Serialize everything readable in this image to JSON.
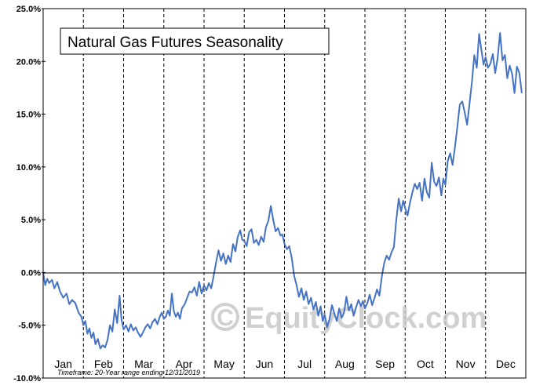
{
  "chart_data": {
    "type": "line",
    "title": "Natural Gas Futures Seasonality",
    "xlabel": "",
    "ylabel": "",
    "y_ticks": [
      "25.0%",
      "20.0%",
      "15.0%",
      "10.0%",
      "5.0%",
      "0.0%",
      "-5.0%",
      "-10.0%"
    ],
    "ylim": [
      -10,
      25
    ],
    "x_categories": [
      "Jan",
      "Feb",
      "Mar",
      "Apr",
      "May",
      "Jun",
      "Jul",
      "Aug",
      "Sep",
      "Oct",
      "Nov",
      "Dec"
    ],
    "grid": {
      "vertical_dashed": true,
      "horizontal": false
    },
    "footnote": "Timeframe: 20-Year range ending 12/31/2019",
    "watermark": "EquityClock.com",
    "line_color": "#4472c4",
    "series": [
      {
        "name": "",
        "points": [
          [
            0.0,
            0.0
          ],
          [
            0.05,
            -1.2
          ],
          [
            0.1,
            -0.6
          ],
          [
            0.15,
            -1.0
          ],
          [
            0.22,
            -0.7
          ],
          [
            0.28,
            -1.5
          ],
          [
            0.35,
            -0.9
          ],
          [
            0.42,
            -1.8
          ],
          [
            0.5,
            -2.4
          ],
          [
            0.58,
            -2.0
          ],
          [
            0.65,
            -3.0
          ],
          [
            0.72,
            -2.6
          ],
          [
            0.8,
            -2.9
          ],
          [
            0.88,
            -3.8
          ],
          [
            0.95,
            -4.2
          ],
          [
            1.0,
            -5.0
          ],
          [
            1.05,
            -4.6
          ],
          [
            1.1,
            -5.8
          ],
          [
            1.15,
            -5.3
          ],
          [
            1.2,
            -6.2
          ],
          [
            1.25,
            -5.7
          ],
          [
            1.3,
            -6.8
          ],
          [
            1.36,
            -6.3
          ],
          [
            1.42,
            -7.2
          ],
          [
            1.48,
            -6.9
          ],
          [
            1.54,
            -7.1
          ],
          [
            1.6,
            -6.4
          ],
          [
            1.66,
            -5.0
          ],
          [
            1.72,
            -5.6
          ],
          [
            1.78,
            -3.5
          ],
          [
            1.84,
            -4.8
          ],
          [
            1.9,
            -2.2
          ],
          [
            1.95,
            -4.5
          ],
          [
            2.0,
            -5.4
          ],
          [
            2.06,
            -5.0
          ],
          [
            2.12,
            -5.6
          ],
          [
            2.18,
            -4.9
          ],
          [
            2.24,
            -5.5
          ],
          [
            2.3,
            -5.2
          ],
          [
            2.36,
            -5.7
          ],
          [
            2.42,
            -6.1
          ],
          [
            2.48,
            -5.7
          ],
          [
            2.54,
            -5.2
          ],
          [
            2.6,
            -4.9
          ],
          [
            2.66,
            -5.3
          ],
          [
            2.72,
            -4.7
          ],
          [
            2.78,
            -4.4
          ],
          [
            2.84,
            -4.9
          ],
          [
            2.9,
            -4.2
          ],
          [
            2.95,
            -3.8
          ],
          [
            3.0,
            -4.4
          ],
          [
            3.05,
            -4.2
          ],
          [
            3.1,
            -3.6
          ],
          [
            3.15,
            -4.1
          ],
          [
            3.2,
            -2.0
          ],
          [
            3.25,
            -3.7
          ],
          [
            3.3,
            -4.2
          ],
          [
            3.35,
            -3.8
          ],
          [
            3.4,
            -4.4
          ],
          [
            3.45,
            -3.4
          ],
          [
            3.52,
            -3.0
          ],
          [
            3.58,
            -2.4
          ],
          [
            3.64,
            -1.8
          ],
          [
            3.7,
            -1.9
          ],
          [
            3.76,
            -1.4
          ],
          [
            3.82,
            -2.2
          ],
          [
            3.88,
            -0.9
          ],
          [
            3.94,
            -2.0
          ],
          [
            4.0,
            -1.2
          ],
          [
            4.06,
            -1.7
          ],
          [
            4.12,
            -1.0
          ],
          [
            4.18,
            -1.5
          ],
          [
            4.24,
            -0.3
          ],
          [
            4.3,
            1.0
          ],
          [
            4.36,
            2.1
          ],
          [
            4.42,
            1.1
          ],
          [
            4.48,
            1.8
          ],
          [
            4.54,
            0.8
          ],
          [
            4.6,
            1.6
          ],
          [
            4.66,
            1.0
          ],
          [
            4.72,
            2.7
          ],
          [
            4.78,
            2.0
          ],
          [
            4.84,
            3.4
          ],
          [
            4.9,
            4.0
          ],
          [
            4.95,
            3.1
          ],
          [
            5.0,
            3.0
          ],
          [
            5.06,
            2.5
          ],
          [
            5.12,
            3.8
          ],
          [
            5.18,
            4.1
          ],
          [
            5.24,
            2.8
          ],
          [
            5.3,
            3.1
          ],
          [
            5.36,
            2.6
          ],
          [
            5.42,
            3.4
          ],
          [
            5.48,
            2.9
          ],
          [
            5.54,
            4.3
          ],
          [
            5.6,
            4.9
          ],
          [
            5.66,
            6.3
          ],
          [
            5.72,
            5.0
          ],
          [
            5.78,
            3.9
          ],
          [
            5.84,
            4.2
          ],
          [
            5.9,
            3.5
          ],
          [
            5.95,
            3.6
          ],
          [
            6.0,
            2.7
          ],
          [
            6.06,
            2.2
          ],
          [
            6.12,
            2.5
          ],
          [
            6.18,
            1.4
          ],
          [
            6.24,
            -0.3
          ],
          [
            6.3,
            -1.2
          ],
          [
            6.36,
            -2.3
          ],
          [
            6.42,
            -1.5
          ],
          [
            6.48,
            -2.6
          ],
          [
            6.54,
            -1.8
          ],
          [
            6.6,
            -3.0
          ],
          [
            6.66,
            -2.4
          ],
          [
            6.72,
            -3.5
          ],
          [
            6.78,
            -2.8
          ],
          [
            6.84,
            -4.1
          ],
          [
            6.9,
            -3.2
          ],
          [
            6.95,
            -4.6
          ],
          [
            7.0,
            -4.0
          ],
          [
            7.06,
            -5.2
          ],
          [
            7.12,
            -4.4
          ],
          [
            7.18,
            -3.1
          ],
          [
            7.24,
            -3.9
          ],
          [
            7.3,
            -4.6
          ],
          [
            7.36,
            -3.4
          ],
          [
            7.42,
            -4.3
          ],
          [
            7.48,
            -3.8
          ],
          [
            7.54,
            -2.3
          ],
          [
            7.6,
            -3.6
          ],
          [
            7.66,
            -3.0
          ],
          [
            7.72,
            -4.1
          ],
          [
            7.78,
            -3.3
          ],
          [
            7.84,
            -2.6
          ],
          [
            7.9,
            -3.2
          ],
          [
            7.95,
            -2.7
          ],
          [
            8.0,
            -3.4
          ],
          [
            8.06,
            -2.9
          ],
          [
            8.12,
            -2.1
          ],
          [
            8.18,
            -3.1
          ],
          [
            8.24,
            -2.4
          ],
          [
            8.3,
            -1.6
          ],
          [
            8.36,
            -2.2
          ],
          [
            8.42,
            -0.4
          ],
          [
            8.48,
            0.9
          ],
          [
            8.54,
            1.6
          ],
          [
            8.6,
            1.2
          ],
          [
            8.66,
            1.9
          ],
          [
            8.72,
            2.4
          ],
          [
            8.78,
            5.0
          ],
          [
            8.84,
            7.0
          ],
          [
            8.9,
            5.8
          ],
          [
            8.95,
            6.8
          ],
          [
            9.0,
            6.1
          ],
          [
            9.06,
            5.4
          ],
          [
            9.12,
            6.6
          ],
          [
            9.18,
            7.6
          ],
          [
            9.24,
            8.4
          ],
          [
            9.3,
            7.9
          ],
          [
            9.36,
            8.5
          ],
          [
            9.42,
            6.8
          ],
          [
            9.48,
            8.9
          ],
          [
            9.54,
            7.6
          ],
          [
            9.6,
            7.1
          ],
          [
            9.66,
            10.4
          ],
          [
            9.72,
            8.6
          ],
          [
            9.78,
            8.2
          ],
          [
            9.84,
            9.0
          ],
          [
            9.9,
            7.3
          ],
          [
            9.95,
            8.9
          ],
          [
            10.0,
            8.3
          ],
          [
            10.06,
            10.6
          ],
          [
            10.12,
            11.3
          ],
          [
            10.18,
            10.2
          ],
          [
            10.24,
            11.9
          ],
          [
            10.3,
            13.9
          ],
          [
            10.36,
            15.9
          ],
          [
            10.42,
            16.2
          ],
          [
            10.48,
            15.2
          ],
          [
            10.54,
            14.0
          ],
          [
            10.6,
            16.0
          ],
          [
            10.66,
            18.0
          ],
          [
            10.72,
            20.6
          ],
          [
            10.78,
            19.4
          ],
          [
            10.84,
            22.6
          ],
          [
            10.9,
            21.0
          ],
          [
            10.95,
            19.7
          ],
          [
            11.0,
            20.4
          ],
          [
            11.06,
            19.4
          ],
          [
            11.12,
            19.8
          ],
          [
            11.18,
            20.7
          ],
          [
            11.24,
            18.9
          ],
          [
            11.3,
            20.3
          ],
          [
            11.36,
            22.7
          ],
          [
            11.42,
            20.1
          ],
          [
            11.48,
            20.6
          ],
          [
            11.54,
            18.4
          ],
          [
            11.6,
            19.6
          ],
          [
            11.66,
            18.8
          ],
          [
            11.72,
            17.0
          ],
          [
            11.78,
            19.5
          ],
          [
            11.84,
            18.9
          ],
          [
            11.9,
            17.0
          ]
        ]
      }
    ]
  }
}
